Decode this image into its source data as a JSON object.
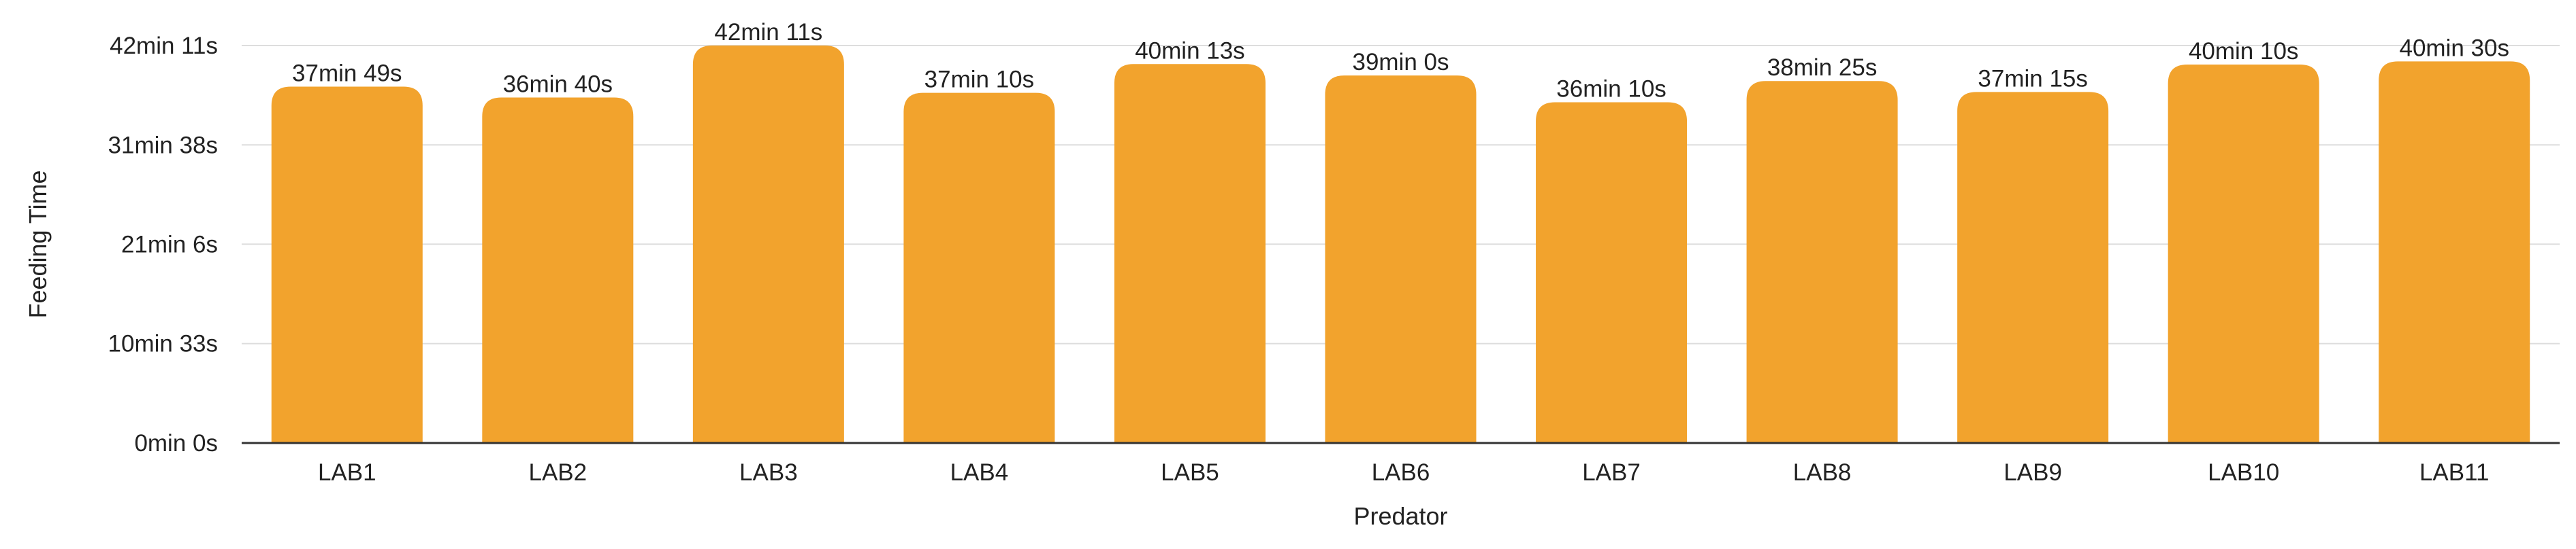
{
  "chart_data": {
    "type": "bar",
    "categories": [
      "LAB1",
      "LAB2",
      "LAB3",
      "LAB4",
      "LAB5",
      "LAB6",
      "LAB7",
      "LAB8",
      "LAB9",
      "LAB10",
      "LAB11"
    ],
    "series": [
      {
        "values": [
          2269,
          2200,
          2531,
          2230,
          2413,
          2340,
          2170,
          2305,
          2235,
          2410,
          2430
        ],
        "labels": [
          "37min 49s",
          "36min 40s",
          "42min 11s",
          "37min 10s",
          "40min 13s",
          "39min 0s",
          "36min 10s",
          "38min 25s",
          "37min 15s",
          "40min 10s",
          "40min 30s"
        ]
      }
    ],
    "ylim": [
      0,
      2531
    ],
    "yticks": [
      0,
      633,
      1266,
      1898,
      2531
    ],
    "ytick_labels": [
      "0min 0s",
      "10min 33s",
      "21min 6s",
      "31min 38s",
      "42min 11s"
    ],
    "xlabel": "Predator",
    "ylabel": "Feeding Time",
    "grid": true,
    "bar_color": "#f2a32d",
    "grid_color": "#dddddd",
    "axis_color": "#333333"
  }
}
